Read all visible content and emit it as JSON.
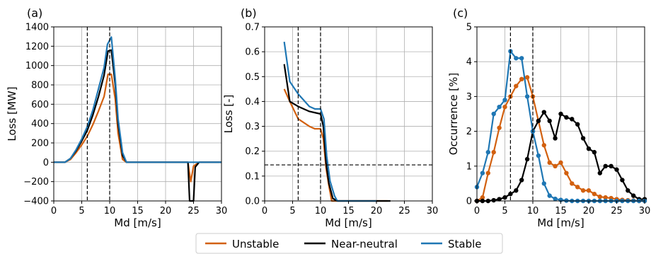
{
  "colors": {
    "unstable": "#d2600f",
    "near_neutral": "#000000",
    "stable": "#1f77b4",
    "grid": "#b0b0b0"
  },
  "legend": {
    "entries": [
      "Unstable",
      "Near-neutral",
      "Stable"
    ],
    "placement": "bottom-center"
  },
  "chart_data": [
    {
      "type": "line",
      "panel_label": "(a)",
      "xlabel": "Md [m/s]",
      "ylabel": "Loss [MW]",
      "xlim": [
        0,
        30
      ],
      "ylim": [
        -400,
        1400
      ],
      "xticks": [
        0,
        5,
        10,
        15,
        20,
        25,
        30
      ],
      "yticks": [
        -400,
        -200,
        0,
        200,
        400,
        600,
        800,
        1000,
        1200,
        1400
      ],
      "grid": true,
      "vlines": [
        6,
        10
      ],
      "hlines": [],
      "markers": false,
      "series": [
        {
          "name": "Unstable",
          "color_key": "unstable",
          "points": [
            [
              0,
              0
            ],
            [
              2,
              0
            ],
            [
              3,
              30
            ],
            [
              4,
              100
            ],
            [
              5,
              180
            ],
            [
              6,
              270
            ],
            [
              7,
              390
            ],
            [
              8,
              530
            ],
            [
              9,
              680
            ],
            [
              9.7,
              910
            ],
            [
              10.3,
              910
            ],
            [
              11,
              650
            ],
            [
              11.5,
              300
            ],
            [
              12.3,
              30
            ],
            [
              13,
              0
            ],
            [
              20,
              0
            ],
            [
              24,
              0
            ],
            [
              24.5,
              -200
            ],
            [
              25,
              -40
            ],
            [
              26,
              0
            ],
            [
              30,
              0
            ]
          ]
        },
        {
          "name": "Near-neutral",
          "color_key": "near_neutral",
          "points": [
            [
              0,
              0
            ],
            [
              2,
              0
            ],
            [
              3,
              40
            ],
            [
              4,
              120
            ],
            [
              5,
              220
            ],
            [
              6,
              330
            ],
            [
              7,
              490
            ],
            [
              8,
              680
            ],
            [
              9,
              900
            ],
            [
              9.7,
              1150
            ],
            [
              10.3,
              1160
            ],
            [
              11,
              800
            ],
            [
              11.5,
              400
            ],
            [
              12.3,
              70
            ],
            [
              13,
              0
            ],
            [
              20,
              0
            ],
            [
              24,
              0
            ],
            [
              24.3,
              -400
            ],
            [
              25,
              -400
            ],
            [
              25.3,
              -50
            ],
            [
              26,
              0
            ],
            [
              30,
              0
            ]
          ]
        },
        {
          "name": "Stable",
          "color_key": "stable",
          "points": [
            [
              0,
              0
            ],
            [
              2,
              0
            ],
            [
              3,
              40
            ],
            [
              4,
              130
            ],
            [
              5,
              240
            ],
            [
              6,
              370
            ],
            [
              7,
              540
            ],
            [
              8,
              760
            ],
            [
              9,
              980
            ],
            [
              9.6,
              1220
            ],
            [
              10.3,
              1295
            ],
            [
              11,
              860
            ],
            [
              11.5,
              450
            ],
            [
              12.3,
              100
            ],
            [
              13,
              0
            ],
            [
              20,
              0
            ],
            [
              24,
              0
            ],
            [
              25,
              0
            ],
            [
              30,
              0
            ]
          ]
        }
      ]
    },
    {
      "type": "line",
      "panel_label": "(b)",
      "xlabel": "Md [m/s]",
      "ylabel": "Loss [-]",
      "xlim": [
        0,
        30
      ],
      "ylim": [
        0,
        0.7
      ],
      "xticks": [
        0,
        5,
        10,
        15,
        20,
        25,
        30
      ],
      "yticks": [
        0.0,
        0.1,
        0.2,
        0.3,
        0.4,
        0.5,
        0.6,
        0.7
      ],
      "grid": true,
      "vlines": [
        6,
        10
      ],
      "hlines": [
        0.145
      ],
      "markers": false,
      "series": [
        {
          "name": "Unstable",
          "color_key": "unstable",
          "points": [
            [
              3.5,
              0.45
            ],
            [
              4.5,
              0.4
            ],
            [
              6,
              0.33
            ],
            [
              8,
              0.3
            ],
            [
              9,
              0.29
            ],
            [
              10,
              0.29
            ],
            [
              10.5,
              0.25
            ],
            [
              11,
              0.13
            ],
            [
              11.5,
              0.06
            ],
            [
              12,
              0.0
            ],
            [
              13,
              0
            ],
            [
              22,
              0
            ]
          ]
        },
        {
          "name": "Near-neutral",
          "color_key": "near_neutral",
          "points": [
            [
              3.5,
              0.55
            ],
            [
              4.5,
              0.4
            ],
            [
              6,
              0.38
            ],
            [
              8,
              0.36
            ],
            [
              9,
              0.355
            ],
            [
              10,
              0.35
            ],
            [
              10.5,
              0.3
            ],
            [
              11,
              0.15
            ],
            [
              11.5,
              0.07
            ],
            [
              12.2,
              0.01
            ],
            [
              13,
              0
            ],
            [
              22.5,
              0
            ]
          ]
        },
        {
          "name": "Stable",
          "color_key": "stable",
          "points": [
            [
              3.5,
              0.64
            ],
            [
              4.5,
              0.48
            ],
            [
              6,
              0.43
            ],
            [
              8,
              0.38
            ],
            [
              9,
              0.37
            ],
            [
              10,
              0.37
            ],
            [
              10.6,
              0.33
            ],
            [
              11.1,
              0.18
            ],
            [
              11.7,
              0.08
            ],
            [
              12.5,
              0.02
            ],
            [
              13,
              0
            ],
            [
              20,
              0
            ]
          ]
        }
      ]
    },
    {
      "type": "line",
      "panel_label": "(c)",
      "xlabel": "Md [m/s]",
      "ylabel": "Occurrence [%]",
      "xlim": [
        0,
        30
      ],
      "ylim": [
        0,
        5
      ],
      "xticks": [
        0,
        5,
        10,
        15,
        20,
        25,
        30
      ],
      "yticks": [
        0,
        1,
        2,
        3,
        4,
        5
      ],
      "grid": true,
      "vlines": [
        6,
        10
      ],
      "hlines": [],
      "markers": true,
      "series": [
        {
          "name": "Unstable",
          "color_key": "unstable",
          "points": [
            [
              0,
              0.0
            ],
            [
              1,
              0.1
            ],
            [
              2,
              0.8
            ],
            [
              3,
              1.4
            ],
            [
              4,
              2.1
            ],
            [
              5,
              2.7
            ],
            [
              6,
              3.0
            ],
            [
              7,
              3.3
            ],
            [
              8,
              3.5
            ],
            [
              9,
              3.55
            ],
            [
              10,
              3.0
            ],
            [
              11,
              2.3
            ],
            [
              12,
              1.6
            ],
            [
              13,
              1.1
            ],
            [
              14,
              1.0
            ],
            [
              15,
              1.1
            ],
            [
              16,
              0.8
            ],
            [
              17,
              0.5
            ],
            [
              18,
              0.4
            ],
            [
              19,
              0.3
            ],
            [
              20,
              0.3
            ],
            [
              21,
              0.2
            ],
            [
              22,
              0.12
            ],
            [
              23,
              0.1
            ],
            [
              24,
              0.08
            ],
            [
              25,
              0.05
            ],
            [
              26,
              0.03
            ],
            [
              27,
              0.02
            ],
            [
              28,
              0.01
            ],
            [
              29,
              0.0
            ],
            [
              30,
              0.0
            ]
          ]
        },
        {
          "name": "Near-neutral",
          "color_key": "near_neutral",
          "points": [
            [
              0,
              0.0
            ],
            [
              1,
              0.0
            ],
            [
              2,
              0.0
            ],
            [
              3,
              0.02
            ],
            [
              4,
              0.05
            ],
            [
              5,
              0.1
            ],
            [
              6,
              0.2
            ],
            [
              7,
              0.3
            ],
            [
              8,
              0.6
            ],
            [
              9,
              1.2
            ],
            [
              10,
              2.0
            ],
            [
              11,
              2.3
            ],
            [
              12,
              2.55
            ],
            [
              13,
              2.3
            ],
            [
              14,
              1.8
            ],
            [
              15,
              2.5
            ],
            [
              16,
              2.4
            ],
            [
              17,
              2.35
            ],
            [
              18,
              2.2
            ],
            [
              19,
              1.8
            ],
            [
              20,
              1.5
            ],
            [
              21,
              1.4
            ],
            [
              22,
              0.8
            ],
            [
              23,
              1.0
            ],
            [
              24,
              1.0
            ],
            [
              25,
              0.9
            ],
            [
              26,
              0.6
            ],
            [
              27,
              0.3
            ],
            [
              28,
              0.15
            ],
            [
              29,
              0.05
            ],
            [
              30,
              0.05
            ]
          ]
        },
        {
          "name": "Stable",
          "color_key": "stable",
          "points": [
            [
              0,
              0.4
            ],
            [
              1,
              0.8
            ],
            [
              2,
              1.4
            ],
            [
              3,
              2.5
            ],
            [
              4,
              2.7
            ],
            [
              5,
              2.9
            ],
            [
              6,
              4.3
            ],
            [
              7,
              4.1
            ],
            [
              8,
              4.1
            ],
            [
              9,
              3.0
            ],
            [
              10,
              2.0
            ],
            [
              11,
              1.3
            ],
            [
              12,
              0.5
            ],
            [
              13,
              0.15
            ],
            [
              14,
              0.06
            ],
            [
              15,
              0.03
            ],
            [
              16,
              0.01
            ],
            [
              17,
              0.0
            ],
            [
              18,
              0.0
            ],
            [
              19,
              0.0
            ],
            [
              20,
              0.0
            ],
            [
              21,
              0.0
            ],
            [
              22,
              0.0
            ],
            [
              23,
              0.0
            ],
            [
              24,
              0.0
            ],
            [
              25,
              0.0
            ],
            [
              26,
              0.0
            ],
            [
              27,
              0.0
            ],
            [
              28,
              0.0
            ],
            [
              29,
              0.0
            ],
            [
              30,
              0.0
            ]
          ]
        }
      ]
    }
  ]
}
